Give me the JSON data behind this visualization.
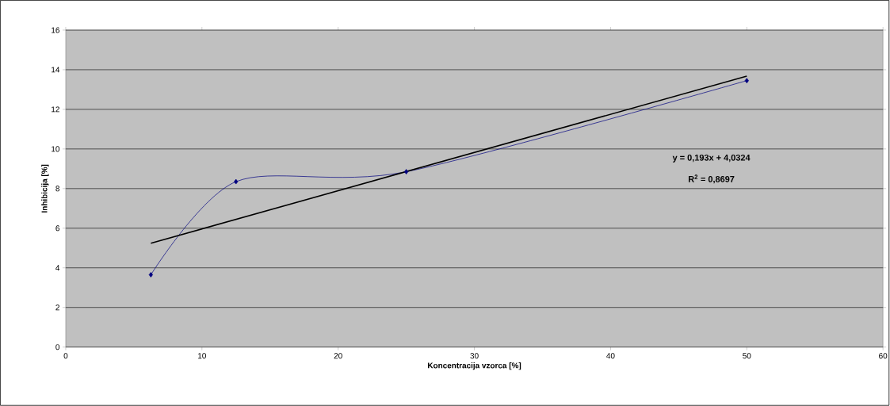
{
  "chart_data": {
    "type": "line",
    "xlabel": "Koncentracija vzorca [%]",
    "ylabel": "Inhibicija [%]",
    "annotations": [
      "y = 0,193x + 4,0324",
      "R$^{2}$ = 0,8697"
    ],
    "xlim": [
      0,
      60
    ],
    "ylim": [
      0,
      16
    ],
    "xticks": [
      0,
      10,
      20,
      30,
      40,
      50,
      60
    ],
    "yticks": [
      0,
      2,
      4,
      6,
      8,
      10,
      12,
      14,
      16
    ],
    "grid": "y",
    "series": [
      {
        "color": "#000080",
        "marker": "diamond",
        "x": [
          6.25,
          12.5,
          25,
          50
        ],
        "values": [
          3.65,
          8.35,
          8.85,
          13.45
        ]
      },
      {
        "color": "#000000",
        "marker": "none",
        "x": [
          6.25,
          50
        ],
        "values": [
          5.24,
          13.68
        ]
      }
    ]
  }
}
